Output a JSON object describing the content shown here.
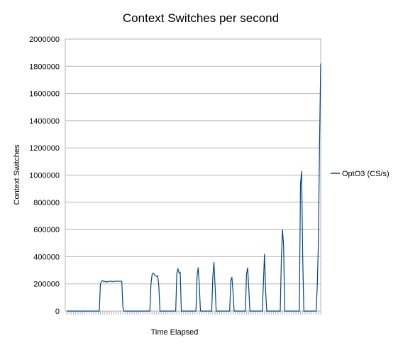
{
  "chart_data": {
    "type": "line",
    "title": "Context Switches per second",
    "xlabel": "Time Elapsed",
    "ylabel": "Context Switches",
    "ylim": [
      0,
      2000000
    ],
    "yticks": [
      0,
      200000,
      400000,
      600000,
      800000,
      1000000,
      1200000,
      1400000,
      1600000,
      1800000,
      2000000
    ],
    "ytick_labels": [
      "0",
      "200000",
      "400000",
      "600000",
      "800000",
      "1000000",
      "1200000",
      "1400000",
      "1600000",
      "1800000",
      "2000000"
    ],
    "grid": true,
    "legend_position": "right",
    "series": [
      {
        "name": "OptO3 (CS/s)",
        "color": "#004586",
        "values": [
          0,
          0,
          0,
          0,
          0,
          0,
          0,
          0,
          0,
          0,
          0,
          0,
          0,
          0,
          0,
          0,
          0,
          0,
          0,
          0,
          0,
          0,
          0,
          0,
          0,
          0,
          0,
          0,
          0,
          0,
          200000,
          220000,
          225000,
          215000,
          220000,
          212000,
          218000,
          215000,
          220000,
          218000,
          220000,
          215000,
          220000,
          218000,
          220000,
          220000,
          218000,
          220000,
          220000,
          218000,
          30000,
          0,
          0,
          0,
          0,
          0,
          0,
          0,
          0,
          0,
          0,
          0,
          0,
          0,
          0,
          0,
          0,
          0,
          0,
          0,
          0,
          0,
          0,
          0,
          0,
          200000,
          270000,
          280000,
          270000,
          260000,
          255000,
          260000,
          180000,
          0,
          0,
          0,
          0,
          0,
          0,
          0,
          0,
          0,
          0,
          0,
          0,
          0,
          0,
          0,
          280000,
          310000,
          280000,
          285000,
          0,
          0,
          0,
          0,
          0,
          0,
          0,
          0,
          0,
          0,
          0,
          0,
          0,
          0,
          260000,
          320000,
          190000,
          0,
          0,
          0,
          0,
          0,
          0,
          0,
          0,
          0,
          0,
          0,
          250000,
          360000,
          190000,
          0,
          0,
          0,
          0,
          0,
          0,
          0,
          0,
          0,
          0,
          0,
          0,
          0,
          220000,
          250000,
          140000,
          0,
          0,
          0,
          0,
          0,
          0,
          0,
          0,
          0,
          0,
          0,
          270000,
          320000,
          170000,
          0,
          0,
          0,
          0,
          0,
          0,
          0,
          0,
          0,
          0,
          0,
          0,
          200000,
          420000,
          150000,
          0,
          0,
          0,
          0,
          0,
          0,
          0,
          0,
          0,
          0,
          0,
          0,
          0,
          380000,
          600000,
          480000,
          0,
          0,
          0,
          0,
          0,
          0,
          0,
          0,
          0,
          0,
          0,
          0,
          0,
          0,
          930000,
          1030000,
          400000,
          0,
          0,
          0,
          0,
          0,
          0,
          0,
          0,
          0,
          0,
          0,
          0,
          200000,
          520000,
          1250000,
          1820000
        ]
      }
    ]
  }
}
